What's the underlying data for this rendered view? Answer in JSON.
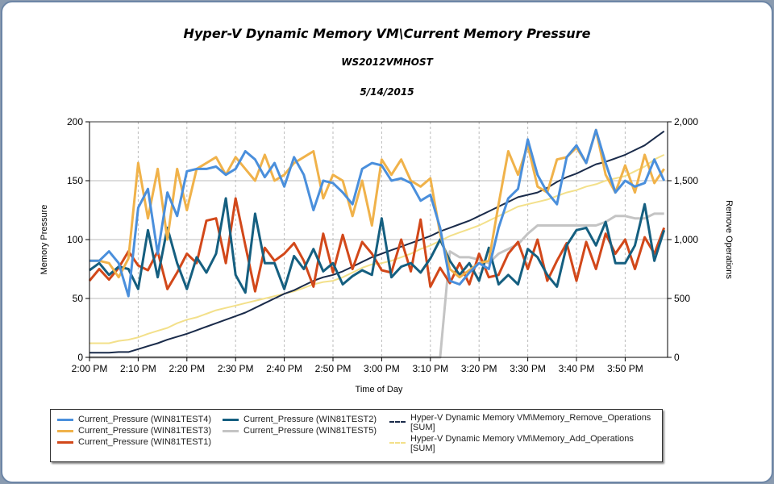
{
  "title": "Hyper-V Dynamic Memory VM\\Current Memory Pressure",
  "subtitle": "WS2012VMHOST",
  "date": "5/14/2015",
  "chart_data": {
    "type": "line",
    "title": "Hyper-V Dynamic Memory VM\\Current Memory Pressure",
    "xlabel": "Time of Day",
    "ylabel": "Memory Pressure",
    "y2label": "Remove Operations",
    "ylim": [
      0,
      200
    ],
    "y2lim": [
      0,
      2000
    ],
    "yticks": [
      "0",
      "50",
      "100",
      "150",
      "200"
    ],
    "y2ticks": [
      "0",
      "500",
      "1,000",
      "1,500",
      "2,000"
    ],
    "xticks": [
      "2:00 PM",
      "2:10 PM",
      "2:20 PM",
      "2:30 PM",
      "2:40 PM",
      "2:50 PM",
      "3:00 PM",
      "3:10 PM",
      "3:20 PM",
      "3:30 PM",
      "3:40 PM",
      "3:50 PM"
    ],
    "grid": true,
    "legend": "bottom",
    "x": [
      "2:00 PM",
      "2:02 PM",
      "2:04 PM",
      "2:06 PM",
      "2:08 PM",
      "2:10 PM",
      "2:12 PM",
      "2:14 PM",
      "2:16 PM",
      "2:18 PM",
      "2:20 PM",
      "2:22 PM",
      "2:24 PM",
      "2:26 PM",
      "2:28 PM",
      "2:30 PM",
      "2:32 PM",
      "2:34 PM",
      "2:36 PM",
      "2:38 PM",
      "2:40 PM",
      "2:42 PM",
      "2:44 PM",
      "2:46 PM",
      "2:48 PM",
      "2:50 PM",
      "2:52 PM",
      "2:54 PM",
      "2:56 PM",
      "2:58 PM",
      "3:00 PM",
      "3:02 PM",
      "3:04 PM",
      "3:06 PM",
      "3:08 PM",
      "3:10 PM",
      "3:12 PM",
      "3:14 PM",
      "3:16 PM",
      "3:18 PM",
      "3:20 PM",
      "3:22 PM",
      "3:24 PM",
      "3:26 PM",
      "3:28 PM",
      "3:30 PM",
      "3:32 PM",
      "3:34 PM",
      "3:36 PM",
      "3:38 PM",
      "3:40 PM",
      "3:42 PM",
      "3:44 PM",
      "3:46 PM",
      "3:48 PM",
      "3:50 PM",
      "3:52 PM",
      "3:54 PM",
      "3:56 PM",
      "3:58 PM"
    ],
    "series": [
      {
        "name": "Current_Pressure (WIN81TEST4)",
        "color": "#4a8fdc",
        "axis": "left",
        "values": [
          82,
          82,
          90,
          80,
          52,
          127,
          143,
          88,
          140,
          120,
          158,
          160,
          160,
          162,
          155,
          160,
          175,
          168,
          153,
          165,
          145,
          170,
          155,
          125,
          150,
          148,
          140,
          130,
          160,
          165,
          163,
          150,
          152,
          148,
          133,
          138,
          110,
          65,
          62,
          72,
          80,
          75,
          110,
          135,
          143,
          185,
          155,
          140,
          130,
          170,
          180,
          165,
          193,
          165,
          140,
          150,
          145,
          148,
          168,
          150
        ]
      },
      {
        "name": "Current_Pressure (WIN81TEST3)",
        "color": "#f0b24a",
        "axis": "left",
        "values": [
          82,
          82,
          80,
          68,
          84,
          165,
          118,
          160,
          100,
          160,
          125,
          160,
          165,
          170,
          155,
          170,
          160,
          150,
          172,
          150,
          155,
          165,
          170,
          175,
          135,
          155,
          150,
          120,
          150,
          112,
          168,
          155,
          168,
          150,
          145,
          152,
          105,
          75,
          68,
          74,
          80,
          82,
          130,
          175,
          155,
          180,
          145,
          140,
          168,
          170,
          178,
          165,
          193,
          155,
          140,
          163,
          140,
          172,
          148,
          160
        ]
      },
      {
        "name": "Current_Pressure (WIN81TEST1)",
        "color": "#d2481a",
        "axis": "left",
        "values": [
          65,
          75,
          66,
          76,
          90,
          78,
          74,
          90,
          58,
          72,
          88,
          80,
          116,
          118,
          80,
          135,
          95,
          56,
          93,
          82,
          88,
          97,
          82,
          60,
          105,
          72,
          104,
          75,
          98,
          88,
          74,
          72,
          100,
          73,
          117,
          60,
          76,
          63,
          80,
          62,
          88,
          68,
          70,
          88,
          98,
          75,
          100,
          65,
          82,
          97,
          65,
          98,
          75,
          105,
          88,
          100,
          75,
          102,
          88,
          110
        ]
      },
      {
        "name": "Current_Pressure (WIN81TEST2)",
        "color": "#155f80",
        "axis": "left",
        "values": [
          74,
          80,
          70,
          77,
          75,
          58,
          108,
          68,
          110,
          80,
          58,
          85,
          72,
          88,
          135,
          70,
          55,
          122,
          80,
          80,
          58,
          86,
          75,
          92,
          73,
          80,
          62,
          69,
          74,
          70,
          118,
          68,
          77,
          80,
          72,
          84,
          100,
          82,
          70,
          80,
          65,
          93,
          62,
          70,
          62,
          92,
          85,
          70,
          60,
          95,
          108,
          110,
          95,
          115,
          80,
          80,
          95,
          130,
          82,
          108
        ]
      },
      {
        "name": "Current_Pressure (WIN81TEST5)",
        "color": "#c4c4c4",
        "axis": "left",
        "values": [
          0,
          0,
          0,
          0,
          0,
          0,
          0,
          0,
          0,
          0,
          0,
          0,
          0,
          0,
          0,
          0,
          0,
          0,
          0,
          0,
          0,
          0,
          0,
          0,
          0,
          0,
          0,
          0,
          0,
          0,
          0,
          0,
          0,
          0,
          0,
          0,
          0,
          90,
          85,
          85,
          83,
          80,
          88,
          92,
          96,
          105,
          112,
          112,
          112,
          112,
          112,
          112,
          112,
          115,
          120,
          120,
          118,
          118,
          122,
          122
        ]
      },
      {
        "name": "Hyper-V Dynamic Memory VM\\Memory_Remove_Operations [SUM]",
        "color": "#1a2b4a",
        "axis": "right",
        "dashed": true,
        "values": [
          40,
          40,
          40,
          45,
          45,
          70,
          95,
          120,
          150,
          175,
          200,
          230,
          260,
          290,
          320,
          350,
          380,
          420,
          460,
          500,
          540,
          570,
          610,
          650,
          680,
          700,
          730,
          770,
          810,
          850,
          880,
          910,
          940,
          970,
          1000,
          1030,
          1070,
          1100,
          1130,
          1160,
          1200,
          1240,
          1280,
          1320,
          1360,
          1380,
          1400,
          1440,
          1490,
          1530,
          1560,
          1600,
          1640,
          1660,
          1690,
          1720,
          1760,
          1800,
          1860,
          1920
        ]
      },
      {
        "name": "Hyper-V Dynamic Memory VM\\Memory_Add_Operations [SUM]",
        "color": "#f3e08a",
        "axis": "right",
        "dashed": true,
        "values": [
          120,
          120,
          120,
          140,
          150,
          170,
          200,
          225,
          250,
          290,
          320,
          340,
          370,
          400,
          420,
          440,
          460,
          480,
          500,
          520,
          540,
          560,
          590,
          620,
          640,
          650,
          680,
          720,
          760,
          790,
          800,
          820,
          850,
          880,
          920,
          950,
          990,
          1030,
          1060,
          1090,
          1120,
          1160,
          1200,
          1240,
          1280,
          1300,
          1320,
          1340,
          1370,
          1400,
          1420,
          1450,
          1470,
          1500,
          1520,
          1540,
          1580,
          1620,
          1680,
          1720
        ]
      }
    ]
  },
  "legend": {
    "items": [
      {
        "label": "Current_Pressure (WIN81TEST4)"
      },
      {
        "label": "Current_Pressure (WIN81TEST3)"
      },
      {
        "label": "Current_Pressure (WIN81TEST1)"
      },
      {
        "label": "Current_Pressure (WIN81TEST2)"
      },
      {
        "label": "Current_Pressure (WIN81TEST5)"
      },
      {
        "label": "Hyper-V Dynamic Memory VM\\Memory_Remove_Operations [SUM]"
      },
      {
        "label": "Hyper-V Dynamic Memory VM\\Memory_Add_Operations [SUM]"
      }
    ]
  }
}
